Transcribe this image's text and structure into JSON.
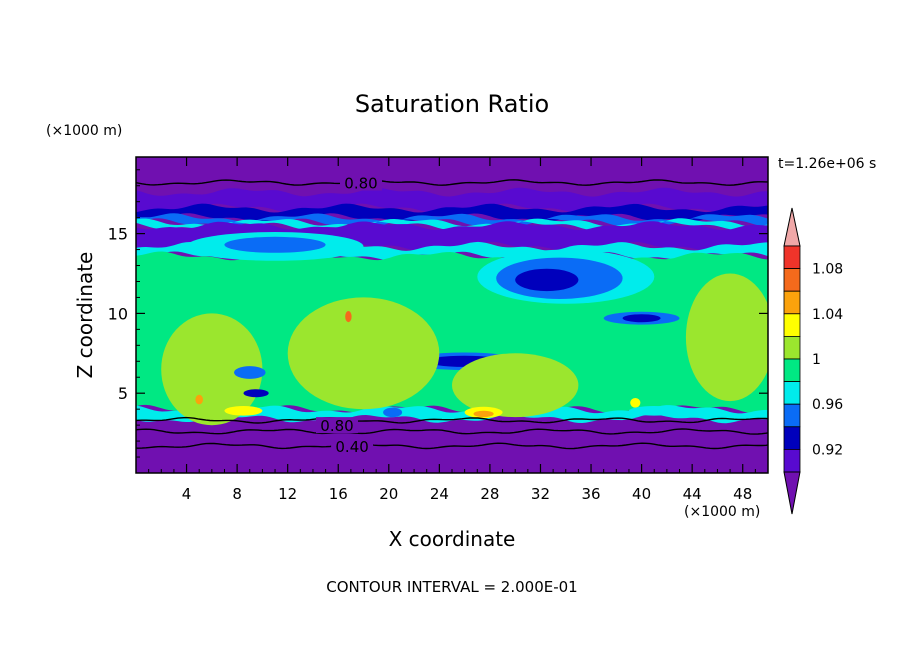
{
  "chart_data": {
    "type": "heatmap",
    "title": "Saturation Ratio",
    "xlabel": "X coordinate",
    "ylabel": "Z coordinate",
    "x_unit": "(×1000 m)",
    "y_unit": "(×1000 m)",
    "time_label": "t=1.26e+06 s",
    "footer": "CONTOUR INTERVAL = 2.000E-01",
    "xlim": [
      0,
      50
    ],
    "ylim": [
      0,
      19.8
    ],
    "x_ticks": [
      4,
      8,
      12,
      16,
      20,
      24,
      28,
      32,
      36,
      40,
      44,
      48
    ],
    "y_ticks": [
      5,
      10,
      15
    ],
    "colorbar_ticks": [
      "1.08",
      "1.04",
      "1",
      "0.96",
      "0.92"
    ],
    "colorbar_levels": [
      {
        "lo": 1.08,
        "hi": 1.1,
        "color": "#f0342a"
      },
      {
        "lo": 1.06,
        "hi": 1.08,
        "color": "#f56a1c"
      },
      {
        "lo": 1.04,
        "hi": 1.06,
        "color": "#fba20c"
      },
      {
        "lo": 1.02,
        "hi": 1.04,
        "color": "#ffff00"
      },
      {
        "lo": 1.0,
        "hi": 1.02,
        "color": "#9be62e"
      },
      {
        "lo": 0.98,
        "hi": 1.0,
        "color": "#00e883"
      },
      {
        "lo": 0.96,
        "hi": 0.98,
        "color": "#00ecec"
      },
      {
        "lo": 0.94,
        "hi": 0.96,
        "color": "#0a6cf6"
      },
      {
        "lo": 0.92,
        "hi": 0.94,
        "color": "#0000bc"
      },
      {
        "lo": 0.9,
        "hi": 0.92,
        "color": "#580ad0"
      }
    ],
    "colorbar_over_color": "#f0a8a8",
    "colorbar_under_color": "#7010b0",
    "background_color": "#7010b0",
    "contour_labels": [
      {
        "text": "0.80",
        "x": 17.8,
        "y": 18.2
      },
      {
        "text": "0.80",
        "x": 15.9,
        "y": 3.0
      },
      {
        "text": "0.40",
        "x": 17.1,
        "y": 1.7
      }
    ],
    "regions": [
      {
        "level": 0.91,
        "z0": 16.6,
        "z1": 17.6
      },
      {
        "level": 0.93,
        "z0": 16.0,
        "z1": 16.6
      },
      {
        "level": 0.95,
        "z0": 15.7,
        "z1": 16.0
      },
      {
        "level": 0.97,
        "z0": 15.5,
        "z1": 15.7
      },
      {
        "level": 0.9,
        "z0": 14.2,
        "z1": 15.5
      },
      {
        "level": 0.97,
        "z0": 13.6,
        "z1": 14.2
      },
      {
        "level": 0.99,
        "z0": 4.0,
        "z1": 13.6
      },
      {
        "level": 0.97,
        "z0": 3.4,
        "z1": 4.0
      }
    ],
    "features": [
      {
        "level": 0.97,
        "x": 34,
        "z": 12.3,
        "w": 14,
        "h": 3.4
      },
      {
        "level": 0.95,
        "x": 33.5,
        "z": 12.2,
        "w": 10,
        "h": 2.6
      },
      {
        "level": 0.93,
        "x": 32.5,
        "z": 12.1,
        "w": 5,
        "h": 1.4
      },
      {
        "level": 0.97,
        "x": 11,
        "z": 14.2,
        "w": 14,
        "h": 1.8
      },
      {
        "level": 0.95,
        "x": 11,
        "z": 14.3,
        "w": 8,
        "h": 1.0
      },
      {
        "level": 0.95,
        "x": 26,
        "z": 7.0,
        "w": 9,
        "h": 1.1
      },
      {
        "level": 0.93,
        "x": 26,
        "z": 7.0,
        "w": 6,
        "h": 0.7
      },
      {
        "level": 0.95,
        "x": 40,
        "z": 9.7,
        "w": 6,
        "h": 0.8
      },
      {
        "level": 0.93,
        "x": 40,
        "z": 9.7,
        "w": 3,
        "h": 0.5
      },
      {
        "level": 1.01,
        "x": 18,
        "z": 7.5,
        "w": 12,
        "h": 7
      },
      {
        "level": 1.01,
        "x": 47,
        "z": 8.5,
        "w": 7,
        "h": 8
      },
      {
        "level": 1.01,
        "x": 6,
        "z": 6.5,
        "w": 8,
        "h": 7
      },
      {
        "level": 1.01,
        "x": 30,
        "z": 5.5,
        "w": 10,
        "h": 4
      },
      {
        "level": 1.03,
        "x": 8.5,
        "z": 3.9,
        "w": 3,
        "h": 0.6
      },
      {
        "level": 1.03,
        "x": 27.5,
        "z": 3.8,
        "w": 3,
        "h": 0.7
      },
      {
        "level": 1.05,
        "x": 27.5,
        "z": 3.7,
        "w": 1.6,
        "h": 0.4
      },
      {
        "level": 1.03,
        "x": 39.5,
        "z": 4.4,
        "w": 0.8,
        "h": 0.6
      },
      {
        "level": 1.05,
        "x": 5.0,
        "z": 4.6,
        "w": 0.6,
        "h": 0.6
      },
      {
        "level": 1.07,
        "x": 16.8,
        "z": 9.8,
        "w": 0.5,
        "h": 0.7
      },
      {
        "level": 0.93,
        "x": 9.5,
        "z": 5.0,
        "w": 2,
        "h": 0.5
      },
      {
        "level": 0.95,
        "x": 9.0,
        "z": 6.3,
        "w": 2.5,
        "h": 0.8
      },
      {
        "level": 0.95,
        "x": 20.3,
        "z": 3.8,
        "w": 1.5,
        "h": 0.6
      },
      {
        "level": 0.97,
        "x": 41,
        "z": 3.9,
        "w": 4,
        "h": 0.6
      }
    ],
    "contours": [
      {
        "level": 0.8,
        "z": 18.2
      },
      {
        "level": 0.8,
        "z": 3.3
      },
      {
        "level": 0.6,
        "z": 2.6
      },
      {
        "level": 0.4,
        "z": 1.7
      }
    ]
  }
}
